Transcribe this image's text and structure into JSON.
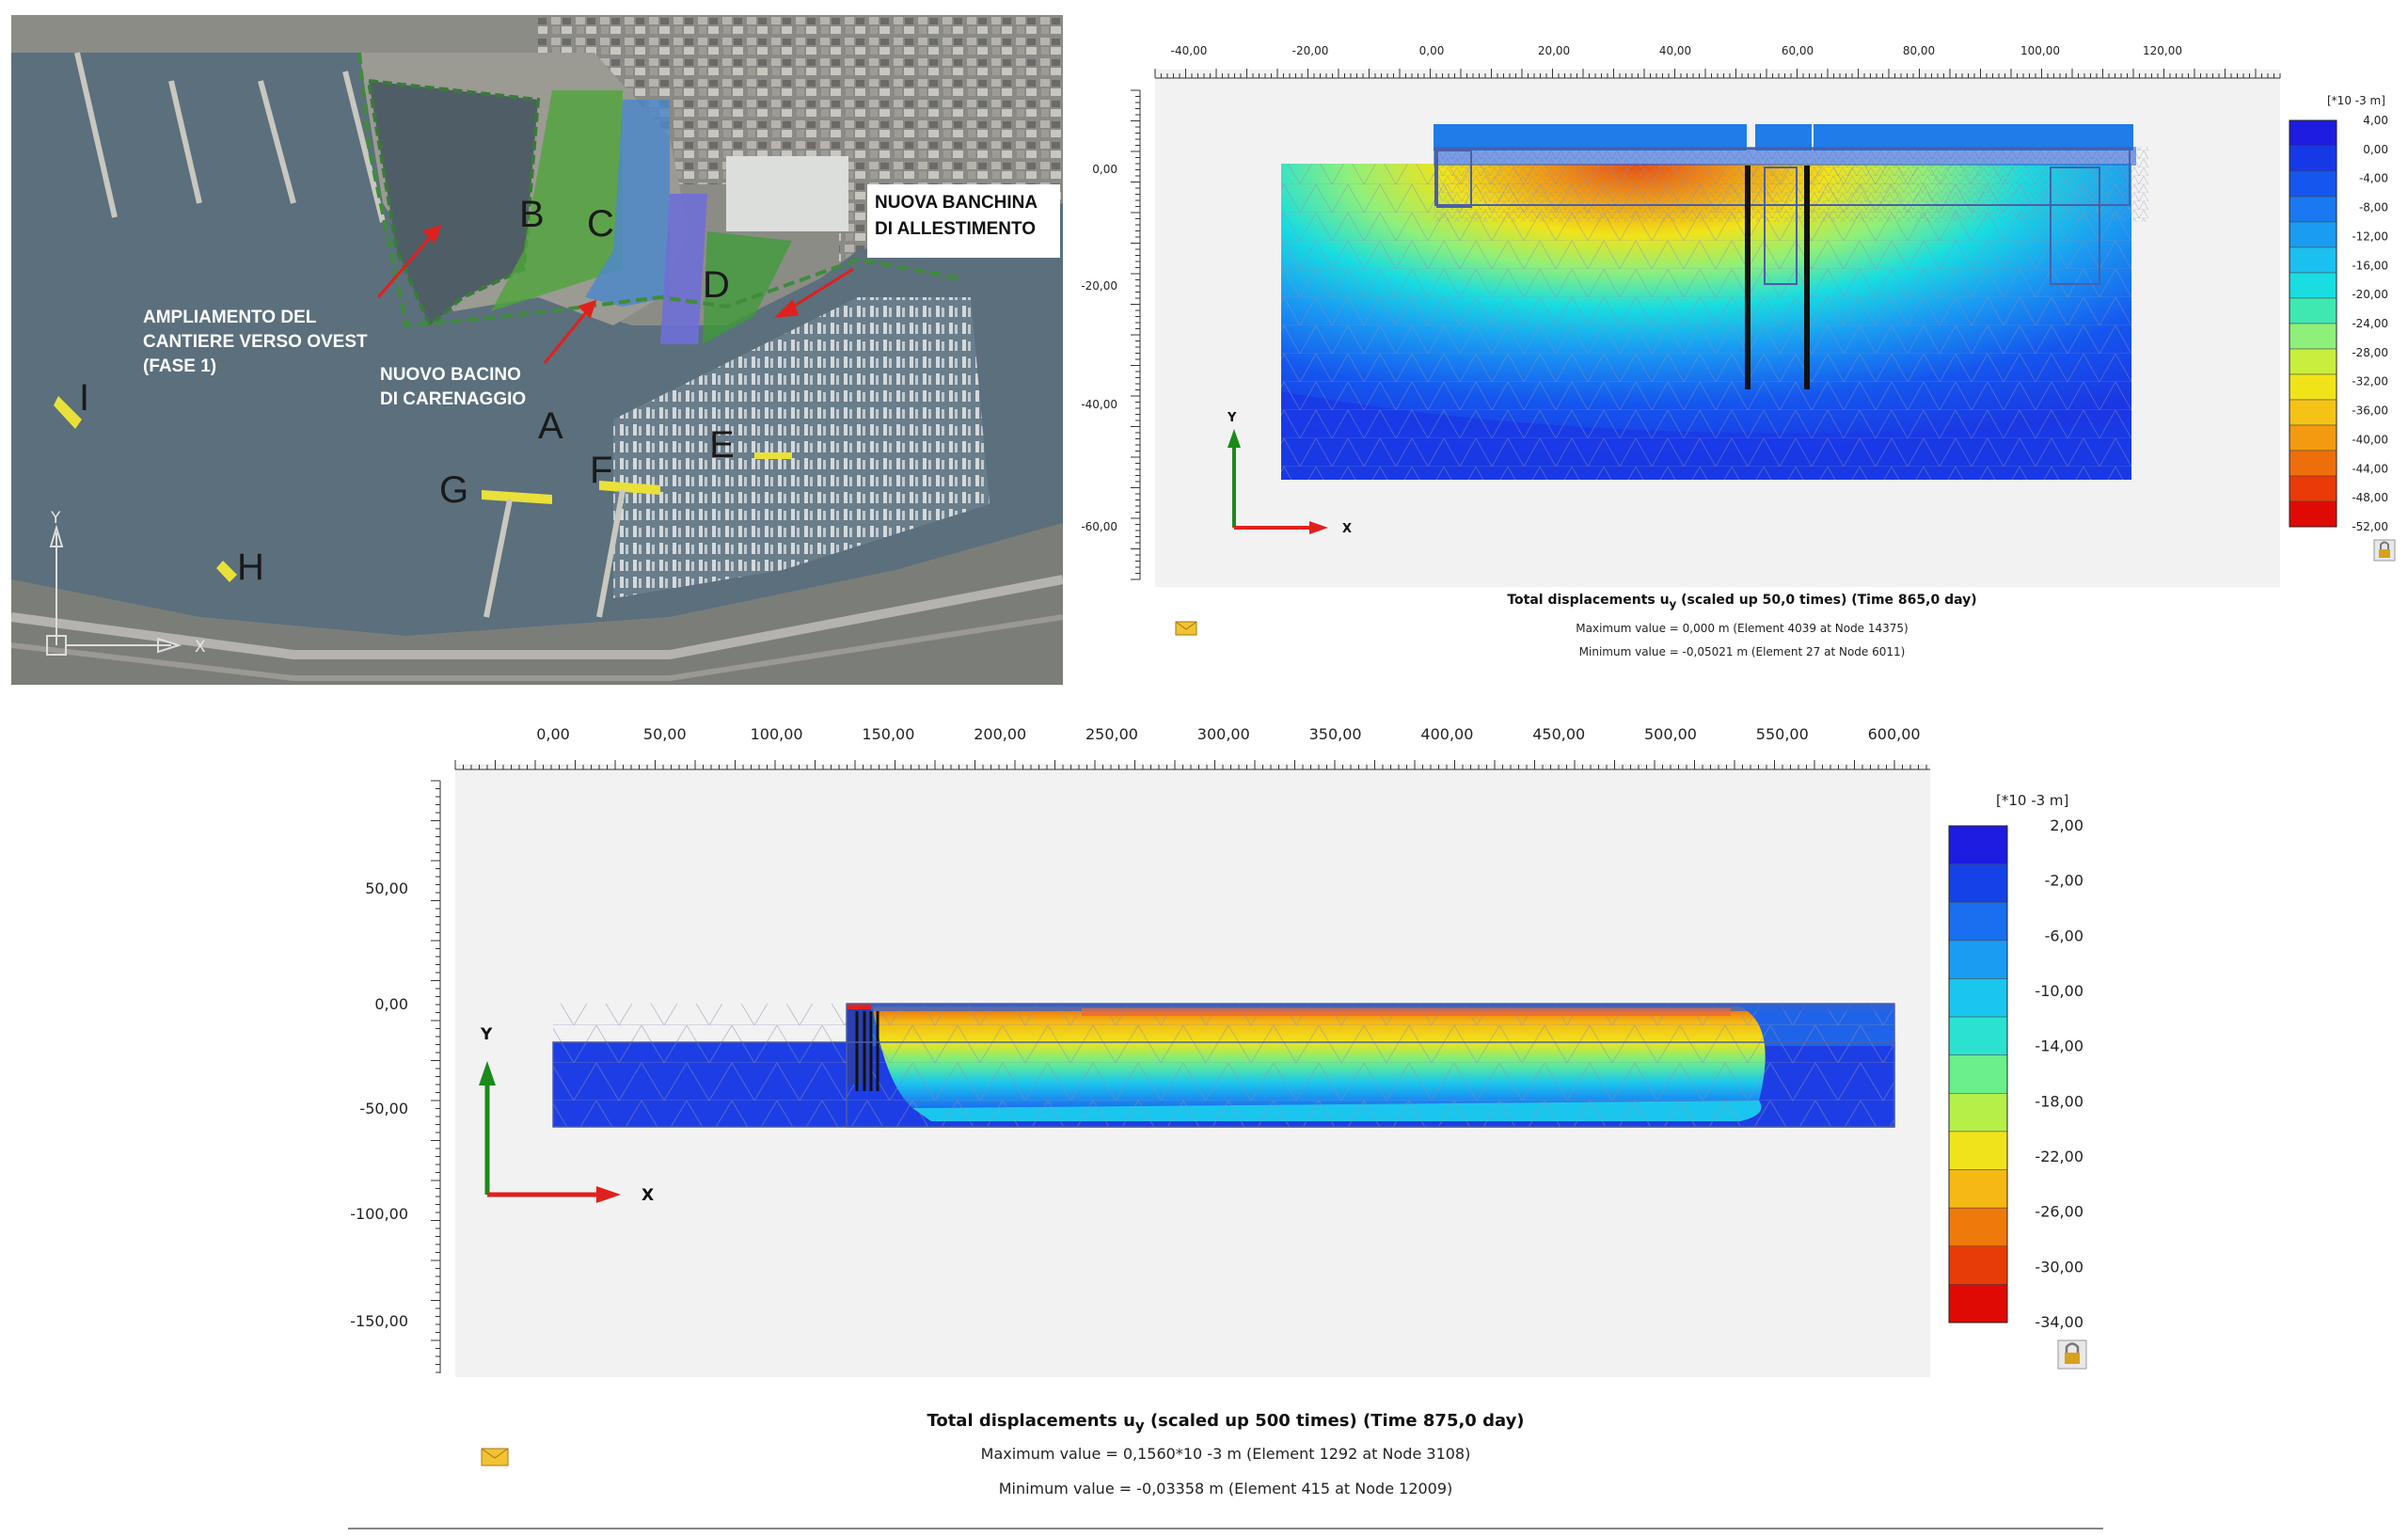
{
  "map": {
    "label_west": [
      "AMPLIAMENTO DEL",
      "CANTIERE VERSO OVEST",
      "(FASE 1)"
    ],
    "label_bacino": [
      "NUOVO BACINO",
      "DI CARENAGGIO"
    ],
    "label_banchina": [
      "NUOVA BANCHINA",
      "DI ALLESTIMENTO"
    ],
    "letters": [
      "A",
      "B",
      "C",
      "D",
      "E",
      "F",
      "G",
      "H",
      "I"
    ],
    "axis_y": "Y",
    "axis_x": "X"
  },
  "plotA": {
    "x_ticks": [
      "-40,00",
      "-20,00",
      "0,00",
      "20,00",
      "40,00",
      "60,00",
      "80,00",
      "100,00",
      "120,00"
    ],
    "y_ticks": [
      "0,00",
      "-20,00",
      "-40,00",
      "-60,00"
    ],
    "legend_unit": "[*10 -3 m]",
    "legend_values": [
      "4,00",
      "0,00",
      "-4,00",
      "-8,00",
      "-12,00",
      "-16,00",
      "-20,00",
      "-24,00",
      "-28,00",
      "-32,00",
      "-36,00",
      "-40,00",
      "-44,00",
      "-48,00",
      "-52,00"
    ],
    "axis_y": "Y",
    "axis_x": "X",
    "title_prefix": "Total displacements u",
    "title_sub": "y",
    "title_suffix": " (scaled up 50,0 times) (Time 865,0 day)",
    "max_line": "Maximum value = 0,000 m (Element 4039 at Node 14375)",
    "min_line": "Minimum value = -0,05021 m (Element 27 at Node 6011)"
  },
  "plotB": {
    "x_ticks": [
      "0,00",
      "50,00",
      "100,00",
      "150,00",
      "200,00",
      "250,00",
      "300,00",
      "350,00",
      "400,00",
      "450,00",
      "500,00",
      "550,00",
      "600,00"
    ],
    "y_ticks": [
      "50,00",
      "0,00",
      "-50,00",
      "-100,00",
      "-150,00"
    ],
    "legend_unit": "[*10 -3 m]",
    "legend_values": [
      "2,00",
      "-2,00",
      "-6,00",
      "-10,00",
      "-14,00",
      "-18,00",
      "-22,00",
      "-26,00",
      "-30,00",
      "-34,00"
    ],
    "axis_y": "Y",
    "axis_x": "X",
    "title_prefix": "Total displacements u",
    "title_sub": "y",
    "title_suffix": " (scaled up 500 times) (Time 875,0 day)",
    "max_line": "Maximum value = 0,1560*10 -3 m (Element 1292 at Node 3108)",
    "min_line": "Minimum value = -0,03358 m (Element 415 at Node 12009)"
  },
  "colors": {
    "legendA": [
      "#1d1ce0",
      "#1639e8",
      "#1556ee",
      "#1a78f0",
      "#1a9cf2",
      "#1bc0f0",
      "#19dde0",
      "#3ee8b0",
      "#8ef07a",
      "#c8ee3e",
      "#f1e31a",
      "#f5c316",
      "#f39a10",
      "#ef6e0c",
      "#e93a08",
      "#e00a05"
    ],
    "legendB": [
      "#1d1ce0",
      "#1542e8",
      "#1a6ef0",
      "#1a9cf2",
      "#1bc6ee",
      "#2be2d0",
      "#6aef8c",
      "#b6ef48",
      "#efe41c",
      "#f5b814",
      "#ef7a0c",
      "#e83c08",
      "#e00a05"
    ]
  }
}
